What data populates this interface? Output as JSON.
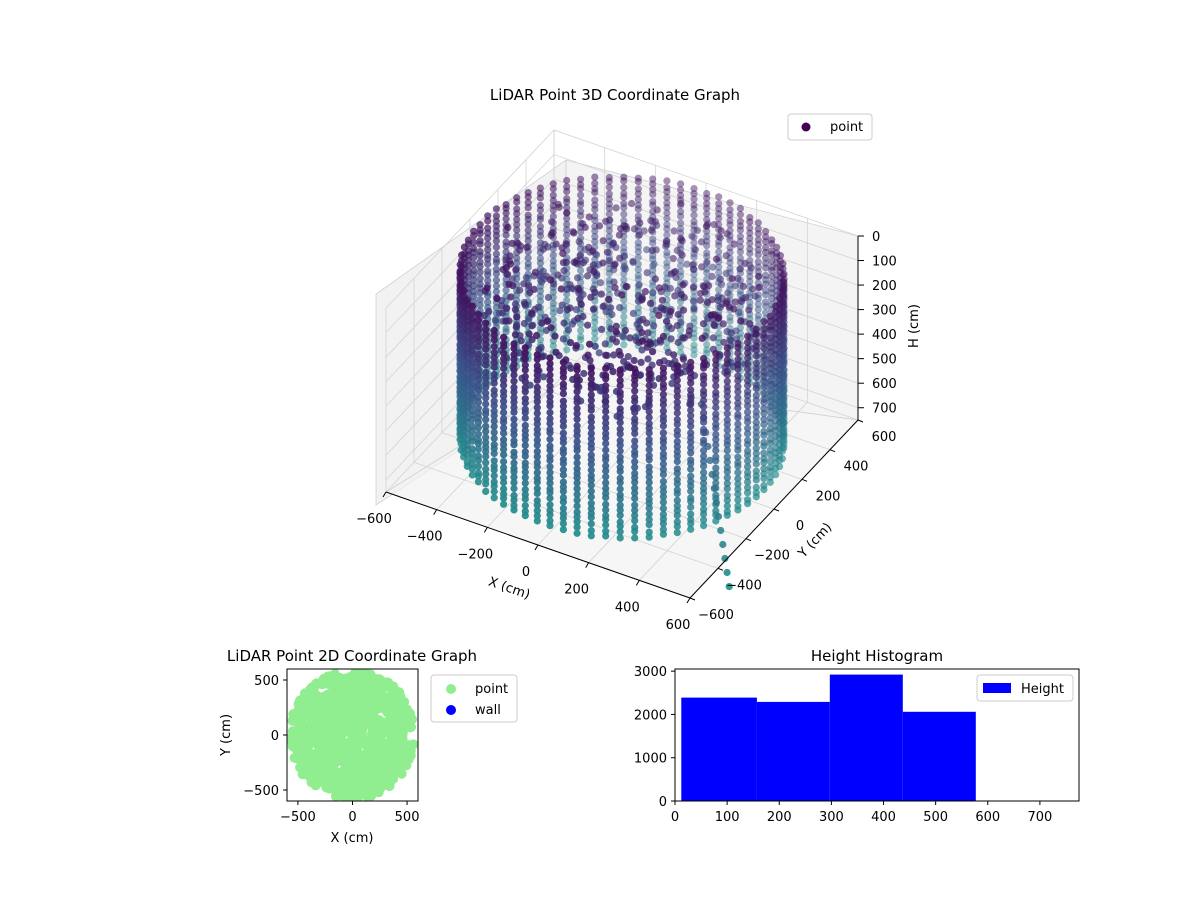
{
  "chart_data": [
    {
      "type": "scatter",
      "projection": "3d",
      "title": "LiDAR Point 3D Coordinate Graph",
      "xlabel": "X (cm)",
      "ylabel": "Y (cm)",
      "zlabel": "H (cm)",
      "xlim": [
        -600,
        600
      ],
      "ylim": [
        -600,
        600
      ],
      "zlim": [
        750,
        0
      ],
      "z_inverted": true,
      "xticks": [
        "−600",
        "−400",
        "−200",
        "0",
        "200",
        "400",
        "600"
      ],
      "yticks": [
        "−600",
        "−400",
        "−200",
        "0",
        "200",
        "400",
        "600"
      ],
      "zticks": [
        "0",
        "100",
        "200",
        "300",
        "400",
        "500",
        "600",
        "700"
      ],
      "grid": true,
      "legend": {
        "position": "top-right",
        "entries": [
          {
            "label": "point",
            "color": "#440154"
          }
        ]
      },
      "colormap": "viridis",
      "series": [
        {
          "name": "point",
          "shape": "ring",
          "radius_cm": 560,
          "center": [
            0,
            0
          ],
          "height_range": [
            0,
            720
          ],
          "inner_scatter_radius_cm": 480,
          "count_approx": 9600
        }
      ]
    },
    {
      "type": "scatter",
      "title": "LiDAR Point 2D Coordinate Graph",
      "xlabel": "X (cm)",
      "ylabel": "Y (cm)",
      "xlim": [
        -600,
        600
      ],
      "ylim": [
        -600,
        600
      ],
      "xticks": [
        "−500",
        "0",
        "500"
      ],
      "yticks": [
        "−500",
        "0",
        "500"
      ],
      "legend": {
        "position": "outside-right",
        "entries": [
          {
            "label": "point",
            "color": "#90ee90"
          },
          {
            "label": "wall",
            "color": "#0000ff"
          }
        ]
      },
      "series": [
        {
          "name": "point",
          "color": "#90ee90",
          "shape": "disc",
          "radius_cm": 580,
          "notch": "right"
        },
        {
          "name": "wall",
          "color": "#0000ff",
          "values": []
        }
      ]
    },
    {
      "type": "bar",
      "subtype": "histogram",
      "title": "Height Histogram",
      "xlim": [
        0,
        775
      ],
      "ylim": [
        0,
        3050
      ],
      "xticks": [
        "0",
        "100",
        "200",
        "300",
        "400",
        "500",
        "600",
        "700"
      ],
      "yticks": [
        "0",
        "1000",
        "2000",
        "3000"
      ],
      "legend": {
        "position": "top-right",
        "entries": [
          {
            "label": "Height",
            "color": "#0000ff"
          }
        ]
      },
      "color": "#0000ff",
      "bins": [
        {
          "start": 12,
          "end": 157,
          "count": 2390
        },
        {
          "start": 157,
          "end": 297,
          "count": 2290
        },
        {
          "start": 297,
          "end": 437,
          "count": 2920
        },
        {
          "start": 437,
          "end": 577,
          "count": 2060
        }
      ]
    }
  ]
}
